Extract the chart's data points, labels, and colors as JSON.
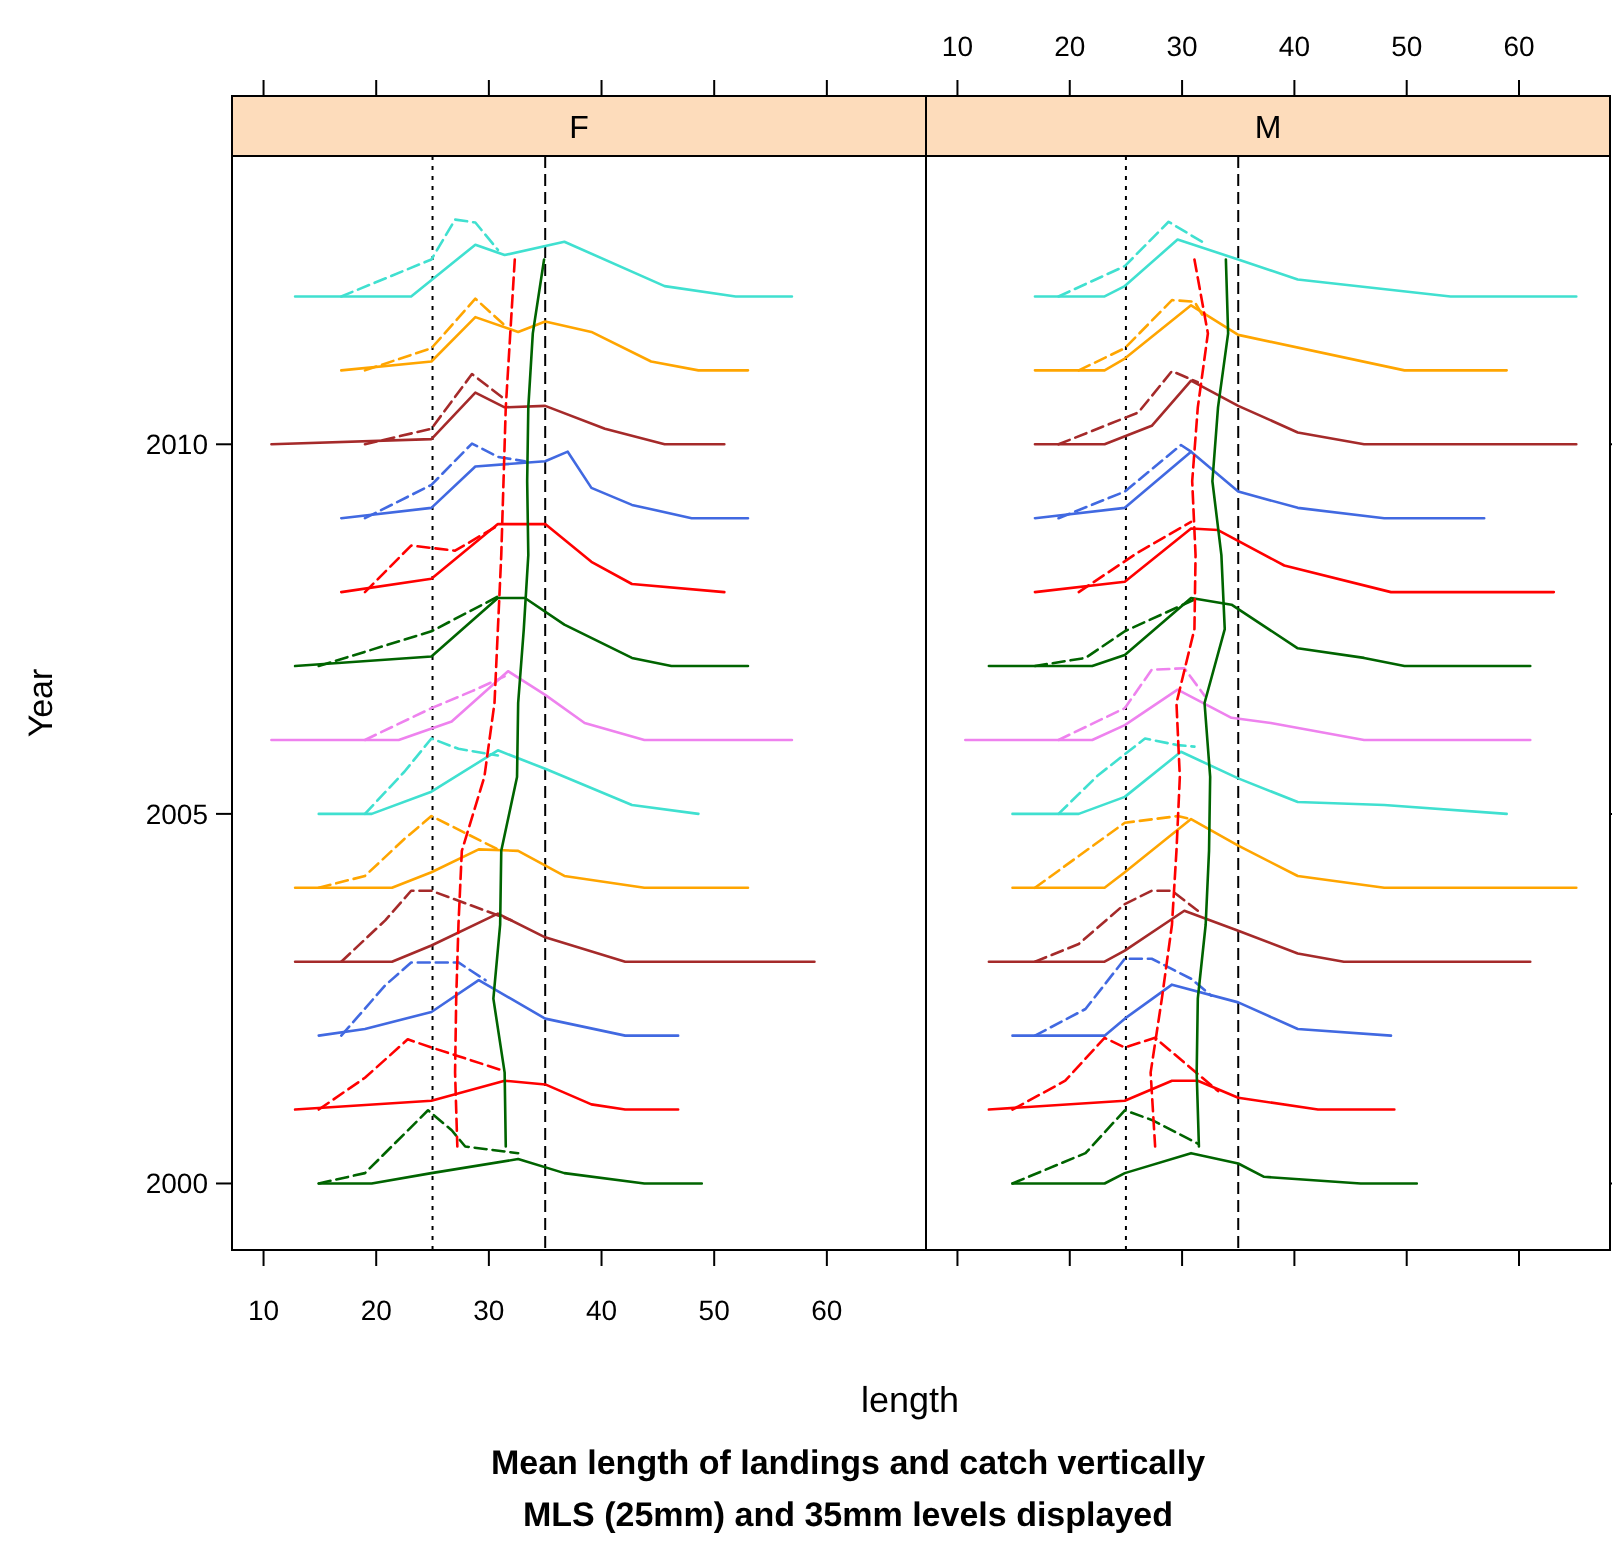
{
  "chart_data": [
    {
      "type": "line",
      "title": "F",
      "ylabel": "Year",
      "xlabel": "length",
      "annotations": [
        "Mean length of landings and catch vertically",
        "MLS (25mm) and 35mm levels displayed"
      ],
      "xlim": [
        7.2,
        68.8
      ],
      "xticks": [
        10,
        20,
        30,
        40,
        50,
        60
      ],
      "ylim": [
        1999.1,
        2013.9
      ],
      "yticks": [
        2000,
        2005,
        2010
      ],
      "ref_lines": [
        {
          "axis": "x",
          "value": 25,
          "label": null,
          "color": "#000000",
          "line_style": "dotted"
        },
        {
          "axis": "x",
          "value": 35,
          "label": null,
          "color": "#000000",
          "line_style": "dashed"
        }
      ],
      "series": [
        {
          "color": "#40e0d0",
          "line_style": "solid",
          "x": [
            12.8,
            23.1,
            28.8,
            31.4,
            36.7,
            45.6,
            51.9,
            56.9
          ],
          "values": [
            2012,
            2012,
            2012.7,
            2012.56,
            2012.74,
            2012.14,
            2012,
            2012
          ]
        },
        {
          "color": "#40e0d0",
          "line_style": "dashed",
          "x": [
            16.9,
            24.9,
            27.0,
            28.8,
            30.8
          ],
          "values": [
            2012,
            2012.5,
            2013.04,
            2013,
            2012.63
          ]
        },
        {
          "color": "#ffa500",
          "line_style": "solid",
          "x": [
            16.9,
            24.9,
            28.8,
            32.6,
            35.0,
            39.1,
            44.4,
            48.6,
            53.0
          ],
          "values": [
            2011,
            2011.12,
            2011.72,
            2011.52,
            2011.66,
            2011.52,
            2011.12,
            2011,
            2011
          ]
        },
        {
          "color": "#ffa500",
          "line_style": "dashed",
          "x": [
            19.0,
            24.9,
            28.8,
            31.4
          ],
          "values": [
            2011,
            2011.3,
            2011.97,
            2011.61
          ]
        },
        {
          "color": "#a52a2a",
          "line_style": "solid",
          "x": [
            10.7,
            24.9,
            28.8,
            31.4,
            35.0,
            40.3,
            45.6,
            50.9
          ],
          "values": [
            2010,
            2010.07,
            2010.7,
            2010.5,
            2010.52,
            2010.21,
            2010,
            2010
          ]
        },
        {
          "color": "#a52a2a",
          "line_style": "dashed",
          "x": [
            19.0,
            24.9,
            28.5,
            31.4
          ],
          "values": [
            2010,
            2010.21,
            2010.95,
            2010.61
          ]
        },
        {
          "color": "#4169e1",
          "line_style": "solid",
          "x": [
            16.9,
            24.9,
            28.8,
            35.0,
            37.0,
            39.1,
            42.7,
            48.0,
            53.0
          ],
          "values": [
            2009,
            2009.14,
            2009.7,
            2009.77,
            2009.9,
            2009.41,
            2009.18,
            2009,
            2009
          ]
        },
        {
          "color": "#4169e1",
          "line_style": "dashed",
          "x": [
            19.0,
            24.9,
            28.5,
            30.8,
            33.2
          ],
          "values": [
            2009,
            2009.45,
            2010.01,
            2009.83,
            2009.77
          ]
        },
        {
          "color": "#ff0000",
          "line_style": "solid",
          "x": [
            16.9,
            24.9,
            30.8,
            35.0,
            39.1,
            42.7,
            50.9
          ],
          "values": [
            2008,
            2008.18,
            2008.92,
            2008.92,
            2008.41,
            2008.11,
            2008
          ]
        },
        {
          "color": "#ff0000",
          "line_style": "dashed",
          "x": [
            19.0,
            23.1,
            27.0,
            30.8
          ],
          "values": [
            2008,
            2008.63,
            2008.56,
            2008.9
          ]
        },
        {
          "color": "#006400",
          "line_style": "solid",
          "x": [
            12.8,
            24.9,
            30.8,
            33.2,
            36.7,
            42.7,
            46.2,
            53.0
          ],
          "values": [
            2007,
            2007.13,
            2007.92,
            2007.92,
            2007.56,
            2007.11,
            2007,
            2007
          ]
        },
        {
          "color": "#006400",
          "line_style": "dashed",
          "x": [
            14.9,
            24.9,
            30.8
          ],
          "values": [
            2007,
            2007.47,
            2007.94
          ]
        },
        {
          "color": "#ee82ee",
          "line_style": "solid",
          "x": [
            10.7,
            22.0,
            26.7,
            31.7,
            35.0,
            38.5,
            43.8,
            56.9
          ],
          "values": [
            2006,
            2006,
            2006.25,
            2006.93,
            2006.61,
            2006.23,
            2006,
            2006
          ]
        },
        {
          "color": "#ee82ee",
          "line_style": "dashed",
          "x": [
            19.0,
            24.9,
            28.5,
            31.4
          ],
          "values": [
            2006,
            2006.43,
            2006.66,
            2006.86
          ]
        },
        {
          "color": "#40e0d0",
          "line_style": "solid",
          "x": [
            14.9,
            19.6,
            24.9,
            30.8,
            35.0,
            42.7,
            48.6
          ],
          "values": [
            2005,
            2005,
            2005.3,
            2005.86,
            2005.61,
            2005.12,
            2005
          ]
        },
        {
          "color": "#40e0d0",
          "line_style": "dashed",
          "x": [
            19.0,
            22.5,
            24.9,
            27.3,
            30.8
          ],
          "values": [
            2005,
            2005.57,
            2006.02,
            2005.88,
            2005.79
          ]
        },
        {
          "color": "#ffa500",
          "line_style": "solid",
          "x": [
            12.8,
            21.4,
            24.9,
            29.1,
            32.6,
            36.7,
            43.8,
            53.0
          ],
          "values": [
            2004,
            2004,
            2004.21,
            2004.52,
            2004.5,
            2004.16,
            2004,
            2004
          ]
        },
        {
          "color": "#ffa500",
          "line_style": "dashed",
          "x": [
            14.9,
            19.0,
            22.5,
            24.9,
            30.8
          ],
          "values": [
            2004,
            2004.16,
            2004.66,
            2004.97,
            2004.52
          ]
        },
        {
          "color": "#a52a2a",
          "line_style": "solid",
          "x": [
            12.8,
            21.4,
            24.9,
            30.8,
            35.0,
            42.1,
            58.9
          ],
          "values": [
            2003,
            2003,
            2003.22,
            2003.65,
            2003.33,
            2003,
            2003
          ]
        },
        {
          "color": "#a52a2a",
          "line_style": "dashed",
          "x": [
            16.9,
            20.8,
            23.1,
            24.9,
            32.0
          ],
          "values": [
            2003,
            2003.56,
            2003.96,
            2003.96,
            2003.56
          ]
        },
        {
          "color": "#4169e1",
          "line_style": "solid",
          "x": [
            14.9,
            19.0,
            24.9,
            29.1,
            35.0,
            42.1,
            46.8
          ],
          "values": [
            2002,
            2002.09,
            2002.32,
            2002.75,
            2002.23,
            2002,
            2002
          ]
        },
        {
          "color": "#4169e1",
          "line_style": "dashed",
          "x": [
            16.9,
            20.8,
            23.1,
            27.3,
            29.7
          ],
          "values": [
            2002,
            2002.68,
            2002.99,
            2002.99,
            2002.75
          ]
        },
        {
          "color": "#ff0000",
          "line_style": "solid",
          "x": [
            12.8,
            24.9,
            31.4,
            35.0,
            39.1,
            42.1,
            46.8
          ],
          "values": [
            2001,
            2001.12,
            2001.39,
            2001.34,
            2001.07,
            2001,
            2001
          ]
        },
        {
          "color": "#ff0000",
          "line_style": "dashed",
          "x": [
            14.9,
            19.0,
            22.8,
            24.9,
            31.4
          ],
          "values": [
            2001,
            2001.43,
            2001.95,
            2001.84,
            2001.52
          ]
        },
        {
          "color": "#006400",
          "line_style": "solid",
          "x": [
            14.9,
            19.6,
            24.9,
            32.6,
            36.7,
            43.8,
            48.9
          ],
          "values": [
            2000,
            2000,
            2000.14,
            2000.33,
            2000.14,
            2000,
            2000
          ]
        },
        {
          "color": "#006400",
          "line_style": "dashed",
          "x": [
            14.9,
            19.0,
            24.6,
            26.7,
            27.9,
            32.6
          ],
          "values": [
            2000,
            2000.14,
            2000.99,
            2000.72,
            2000.5,
            2000.41
          ]
        },
        {
          "color": "#ff0000",
          "line_style": "dashed",
          "x": [
            32.3,
            31.9,
            31.5,
            31.3,
            31.1,
            30.8,
            30.5,
            29.6,
            27.6,
            27.3,
            27.1,
            27.0,
            27.2
          ],
          "values": [
            2012.5,
            2011.5,
            2010.5,
            2009.5,
            2008.5,
            2007.5,
            2006.5,
            2005.5,
            2004.5,
            2003.5,
            2002.5,
            2001.5,
            2000.5
          ]
        },
        {
          "color": "#006400",
          "line_style": "solid",
          "x": [
            34.9,
            33.9,
            33.5,
            33.4,
            33.5,
            33.1,
            32.6,
            32.5,
            31.1,
            31.0,
            30.4,
            31.4,
            31.5
          ],
          "values": [
            2012.5,
            2011.5,
            2010.5,
            2009.5,
            2008.5,
            2007.5,
            2006.5,
            2005.5,
            2004.5,
            2003.5,
            2002.5,
            2001.5,
            2000.5
          ]
        }
      ]
    },
    {
      "type": "line",
      "title": "M",
      "tick_labels": "x",
      "xlim": [
        7.2,
        68.1
      ],
      "xticks": [
        10,
        20,
        30,
        40,
        50,
        60
      ],
      "ylim": [
        1999.1,
        2013.9
      ],
      "yticks": [
        2000,
        2005,
        2010
      ],
      "ref_lines": [
        {
          "axis": "x",
          "value": 25,
          "label": null,
          "color": "#000000",
          "line_style": "dotted"
        },
        {
          "axis": "x",
          "value": 35,
          "label": null,
          "color": "#000000",
          "line_style": "dashed"
        }
      ],
      "series": [
        {
          "color": "#40e0d0",
          "line_style": "solid",
          "x": [
            16.9,
            23.1,
            24.9,
            29.6,
            35.0,
            40.3,
            53.9,
            65.1
          ],
          "values": [
            2012,
            2012,
            2012.14,
            2012.77,
            2012.5,
            2012.23,
            2012,
            2012
          ]
        },
        {
          "color": "#40e0d0",
          "line_style": "dashed",
          "x": [
            19.0,
            24.9,
            28.8,
            32.0
          ],
          "values": [
            2012,
            2012.41,
            2013.01,
            2012.72
          ]
        },
        {
          "color": "#ffa500",
          "line_style": "solid",
          "x": [
            16.9,
            23.1,
            24.9,
            30.8,
            35.0,
            49.8,
            58.9
          ],
          "values": [
            2011,
            2011,
            2011.16,
            2011.88,
            2011.48,
            2011,
            2011
          ]
        },
        {
          "color": "#ffa500",
          "line_style": "dashed",
          "x": [
            20.8,
            24.9,
            29.1,
            31.1,
            32.0
          ],
          "values": [
            2011,
            2011.3,
            2011.95,
            2011.93,
            2011.7
          ]
        },
        {
          "color": "#a52a2a",
          "line_style": "solid",
          "x": [
            16.9,
            23.1,
            27.3,
            30.8,
            35.0,
            40.3,
            46.2,
            65.1
          ],
          "values": [
            2010,
            2010,
            2010.25,
            2010.86,
            2010.52,
            2010.16,
            2010,
            2010
          ]
        },
        {
          "color": "#a52a2a",
          "line_style": "dashed",
          "x": [
            19.0,
            26.1,
            29.1,
            31.4
          ],
          "values": [
            2010,
            2010.43,
            2010.99,
            2010.84
          ]
        },
        {
          "color": "#4169e1",
          "line_style": "solid",
          "x": [
            16.9,
            24.9,
            30.8,
            35.0,
            40.3,
            48.0,
            56.9
          ],
          "values": [
            2009,
            2009.14,
            2009.9,
            2009.36,
            2009.14,
            2009,
            2009
          ]
        },
        {
          "color": "#4169e1",
          "line_style": "dashed",
          "x": [
            19.0,
            24.9,
            29.9,
            30.8
          ],
          "values": [
            2009,
            2009.36,
            2009.99,
            2009.9
          ]
        },
        {
          "color": "#ff0000",
          "line_style": "solid",
          "x": [
            16.9,
            24.9,
            30.8,
            33.2,
            39.1,
            48.6,
            63.1
          ],
          "values": [
            2008,
            2008.14,
            2008.86,
            2008.84,
            2008.36,
            2008,
            2008
          ]
        },
        {
          "color": "#ff0000",
          "line_style": "dashed",
          "x": [
            20.8,
            26.1,
            30.8
          ],
          "values": [
            2008,
            2008.54,
            2008.95
          ]
        },
        {
          "color": "#006400",
          "line_style": "solid",
          "x": [
            12.8,
            22.0,
            24.9,
            30.8,
            34.4,
            40.3,
            46.2,
            49.8,
            61.0
          ],
          "values": [
            2007,
            2007,
            2007.15,
            2007.92,
            2007.83,
            2007.24,
            2007.11,
            2007,
            2007
          ]
        },
        {
          "color": "#006400",
          "line_style": "dashed",
          "x": [
            16.9,
            21.4,
            24.9,
            28.5,
            31.4
          ],
          "values": [
            2007,
            2007.11,
            2007.47,
            2007.72,
            2007.92
          ]
        },
        {
          "color": "#ee82ee",
          "line_style": "solid",
          "x": [
            10.7,
            22.0,
            24.9,
            29.6,
            34.4,
            37.9,
            46.2,
            61.0
          ],
          "values": [
            2006,
            2006,
            2006.2,
            2006.68,
            2006.3,
            2006.23,
            2006,
            2006
          ]
        },
        {
          "color": "#ee82ee",
          "line_style": "dashed",
          "x": [
            19.0,
            24.9,
            27.3,
            30.2,
            32.0
          ],
          "values": [
            2006,
            2006.43,
            2006.95,
            2006.97,
            2006.6
          ]
        },
        {
          "color": "#40e0d0",
          "line_style": "solid",
          "x": [
            14.9,
            20.8,
            24.9,
            29.9,
            35.0,
            40.3,
            48.0,
            58.9
          ],
          "values": [
            2005,
            2005,
            2005.23,
            2005.84,
            2005.48,
            2005.16,
            2005.12,
            2005
          ]
        },
        {
          "color": "#40e0d0",
          "line_style": "dashed",
          "x": [
            19.0,
            22.5,
            26.7,
            29.6,
            31.1
          ],
          "values": [
            2005,
            2005.52,
            2006.02,
            2005.93,
            2005.91
          ]
        },
        {
          "color": "#ffa500",
          "line_style": "solid",
          "x": [
            14.9,
            23.1,
            24.9,
            30.8,
            35.0,
            40.3,
            48.0,
            65.1
          ],
          "values": [
            2004,
            2004,
            2004.21,
            2004.93,
            2004.57,
            2004.16,
            2004,
            2004
          ]
        },
        {
          "color": "#ffa500",
          "line_style": "dashed",
          "x": [
            16.9,
            20.8,
            24.9,
            29.6,
            30.8
          ],
          "values": [
            2004,
            2004.43,
            2004.88,
            2004.97,
            2004.93
          ]
        },
        {
          "color": "#a52a2a",
          "line_style": "solid",
          "x": [
            12.8,
            23.1,
            24.9,
            30.2,
            35.0,
            40.3,
            44.4,
            61.0
          ],
          "values": [
            2003,
            2003,
            2003.15,
            2003.69,
            2003.42,
            2003.11,
            2003,
            2003
          ]
        },
        {
          "color": "#a52a2a",
          "line_style": "dashed",
          "x": [
            16.9,
            20.8,
            24.9,
            27.3,
            29.1,
            31.4
          ],
          "values": [
            2003,
            2003.24,
            2003.78,
            2003.96,
            2003.96,
            2003.69
          ]
        },
        {
          "color": "#4169e1",
          "line_style": "solid",
          "x": [
            14.9,
            23.1,
            24.9,
            29.1,
            35.0,
            40.3,
            48.6
          ],
          "values": [
            2002,
            2002,
            2002.23,
            2002.69,
            2002.45,
            2002.09,
            2002
          ]
        },
        {
          "color": "#4169e1",
          "line_style": "dashed",
          "x": [
            16.9,
            21.4,
            24.9,
            27.3,
            30.8,
            32.6
          ],
          "values": [
            2002,
            2002.36,
            2003.04,
            2003.04,
            2002.77,
            2002.54
          ]
        },
        {
          "color": "#ff0000",
          "line_style": "solid",
          "x": [
            12.8,
            24.9,
            29.1,
            31.4,
            35.0,
            42.1,
            48.9
          ],
          "values": [
            2001,
            2001.12,
            2001.39,
            2001.39,
            2001.16,
            2001,
            2001
          ]
        },
        {
          "color": "#ff0000",
          "line_style": "dashed",
          "x": [
            14.9,
            19.6,
            23.1,
            24.9,
            27.6,
            33.2
          ],
          "values": [
            2001,
            2001.39,
            2001.97,
            2001.84,
            2001.97,
            2001.25
          ]
        },
        {
          "color": "#006400",
          "line_style": "solid",
          "x": [
            14.9,
            23.1,
            24.9,
            30.8,
            35.0,
            37.3,
            45.9,
            50.9
          ],
          "values": [
            2000,
            2000,
            2000.14,
            2000.41,
            2000.27,
            2000.09,
            2000,
            2000
          ]
        },
        {
          "color": "#006400",
          "line_style": "dashed",
          "x": [
            14.9,
            21.4,
            24.9,
            27.3,
            31.4
          ],
          "values": [
            2000,
            2000.41,
            2000.99,
            2000.86,
            2000.54
          ]
        },
        {
          "color": "#ff0000",
          "line_style": "dashed",
          "x": [
            31.1,
            32.3,
            31.4,
            30.9,
            31.2,
            31.1,
            29.5,
            29.8,
            29.5,
            29.1,
            28.2,
            27.2,
            27.6
          ],
          "values": [
            2012.5,
            2011.5,
            2010.5,
            2009.5,
            2008.5,
            2007.5,
            2006.5,
            2005.5,
            2004.5,
            2003.5,
            2002.5,
            2001.5,
            2000.5
          ]
        },
        {
          "color": "#006400",
          "line_style": "solid",
          "x": [
            33.9,
            34.1,
            33.2,
            32.7,
            33.5,
            33.8,
            32.0,
            32.5,
            32.4,
            32.1,
            31.4,
            31.3,
            31.5
          ],
          "values": [
            2012.5,
            2011.5,
            2010.5,
            2009.5,
            2008.5,
            2007.5,
            2006.5,
            2005.5,
            2004.5,
            2003.5,
            2002.5,
            2001.5,
            2000.5
          ]
        }
      ]
    }
  ]
}
